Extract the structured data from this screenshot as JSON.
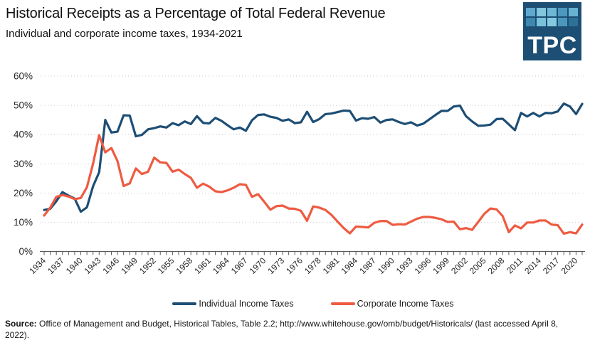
{
  "header": {
    "title": "Historical Receipts as a Percentage of Total Federal Revenue",
    "subtitle": "Individual and corporate income taxes, 1934-2021",
    "logo": {
      "text": "TPC",
      "bg_color": "#1d4e74",
      "square_colors": [
        "#5ea9cd",
        "#82c6df",
        "#6fb8d5",
        "#4c98bf",
        "#68b2d1",
        "#3d88af",
        "#79c1db",
        "#85c9e1",
        "#4b96bd",
        "#2e7197"
      ]
    }
  },
  "chart_data": {
    "type": "line",
    "title": "Historical Receipts as a Percentage of Total Federal Revenue",
    "subtitle": "Individual and corporate income taxes, 1934-2021",
    "x": [
      "1934",
      "1935",
      "1936",
      "1937",
      "1938",
      "1939",
      "1940",
      "1941",
      "1942",
      "1943",
      "1944",
      "1945",
      "1946",
      "1947",
      "1948",
      "1949",
      "1950",
      "1951",
      "1952",
      "1953",
      "1954",
      "1955",
      "1956",
      "1957",
      "1958",
      "1959",
      "1960",
      "1961",
      "1962",
      "1963",
      "1964",
      "1965",
      "1966",
      "1967",
      "1968",
      "1969",
      "1970",
      "1971",
      "1972",
      "1973",
      "1974",
      "1975",
      "1976",
      "TQ",
      "1977",
      "1978",
      "1979",
      "1980",
      "1981",
      "1982",
      "1983",
      "1984",
      "1985",
      "1986",
      "1987",
      "1988",
      "1989",
      "1990",
      "1991",
      "1992",
      "1993",
      "1994",
      "1995",
      "1996",
      "1997",
      "1998",
      "1999",
      "2000",
      "2001",
      "2002",
      "2003",
      "2004",
      "2005",
      "2006",
      "2007",
      "2008",
      "2009",
      "2010",
      "2011",
      "2012",
      "2013",
      "2014",
      "2015",
      "2016",
      "2017",
      "2018",
      "2019",
      "2020",
      "2021"
    ],
    "x_axis_visible_labels": [
      "1934",
      "1937",
      "1940",
      "1943",
      "1946",
      "1949",
      "1952",
      "1955",
      "1958",
      "1961",
      "1964",
      "1967",
      "1970",
      "1973",
      "1976",
      "1978",
      "1981",
      "1984",
      "1987",
      "1990",
      "1993",
      "1996",
      "1999",
      "2002",
      "2005",
      "2008",
      "2011",
      "2014",
      "2017",
      "2020"
    ],
    "series": [
      {
        "name": "Individual Income Taxes",
        "color": "#1d4e75",
        "values": [
          14.2,
          14.6,
          17.2,
          20.3,
          19.1,
          18.1,
          13.6,
          15.1,
          22.3,
          27.1,
          45.0,
          40.7,
          41.0,
          46.6,
          46.5,
          39.4,
          39.9,
          41.8,
          42.2,
          42.8,
          42.4,
          43.9,
          43.2,
          44.5,
          43.6,
          46.3,
          44.0,
          43.8,
          45.7,
          44.7,
          43.2,
          41.8,
          42.4,
          41.3,
          44.9,
          46.7,
          46.9,
          46.1,
          45.7,
          44.7,
          45.2,
          43.9,
          44.2,
          47.8,
          44.3,
          45.3,
          47.0,
          47.2,
          47.7,
          48.2,
          48.1,
          44.8,
          45.6,
          45.4,
          46.0,
          44.1,
          45.0,
          45.2,
          44.3,
          43.6,
          44.2,
          43.1,
          43.7,
          45.2,
          46.7,
          48.1,
          48.1,
          49.6,
          49.9,
          46.3,
          44.5,
          43.0,
          43.1,
          43.4,
          45.3,
          45.4,
          43.5,
          41.5,
          47.4,
          46.2,
          47.4,
          46.2,
          47.4,
          47.3,
          47.9,
          50.6,
          49.6,
          47.0,
          50.5
        ]
      },
      {
        "name": "Corporate Income Taxes",
        "color": "#ef5a41",
        "values": [
          12.3,
          15.0,
          18.7,
          19.3,
          18.8,
          17.9,
          18.3,
          22.0,
          30.0,
          39.8,
          33.9,
          35.4,
          30.9,
          22.4,
          23.3,
          28.4,
          26.5,
          27.3,
          32.1,
          30.5,
          30.3,
          27.3,
          28.0,
          26.5,
          25.2,
          21.8,
          23.2,
          22.2,
          20.6,
          20.3,
          20.9,
          21.8,
          23.0,
          22.8,
          18.7,
          19.6,
          17.0,
          14.3,
          15.5,
          15.7,
          14.7,
          14.6,
          13.9,
          10.5,
          15.4,
          15.0,
          14.2,
          12.5,
          10.2,
          8.0,
          6.2,
          8.5,
          8.4,
          8.2,
          9.8,
          10.4,
          10.4,
          9.1,
          9.3,
          9.2,
          10.2,
          11.2,
          11.8,
          11.8,
          11.5,
          11.0,
          10.1,
          10.2,
          7.6,
          8.0,
          7.4,
          10.1,
          12.9,
          14.7,
          14.4,
          12.1,
          6.6,
          8.9,
          7.9,
          9.9,
          9.9,
          10.6,
          10.6,
          9.2,
          9.0,
          6.1,
          6.6,
          6.2,
          9.2
        ]
      }
    ],
    "ylim": [
      0,
      60
    ],
    "y_tick_step": 10,
    "y_tick_suffix": "%",
    "y_tick_labels": [
      "0%",
      "10%",
      "20%",
      "30%",
      "40%",
      "50%",
      "60%"
    ],
    "grid": "horizontal-dotted",
    "grid_color": "#c9c9c9",
    "axis_color": "#595959",
    "tick_label_color": "#262626",
    "legend_position": "bottom"
  },
  "footer": {
    "source_label": "Source:",
    "source_text": " Office of Management and Budget, Historical Tables, Table 2.2; http://www.whitehouse.gov/omb/budget/Historicals/  (last accessed April 8, 2022)."
  }
}
